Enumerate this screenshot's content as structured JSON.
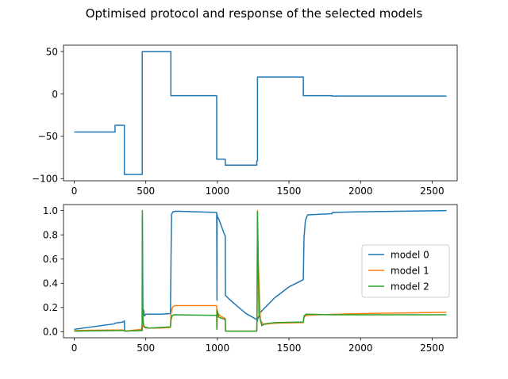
{
  "figure": {
    "title": "Optimised protocol and response of the selected models"
  },
  "colors": {
    "model0": "#1f77b4",
    "model1": "#ff7f0e",
    "model2": "#2ca02c",
    "protocol": "#1f77b4"
  },
  "chart_data": [
    {
      "type": "line",
      "title": "",
      "xlabel": "",
      "ylabel": "",
      "xlim": [
        -75,
        2675
      ],
      "ylim": [
        -102.5,
        57.5
      ],
      "xticks": [
        0,
        500,
        1000,
        1500,
        2000,
        2500
      ],
      "yticks": [
        -100,
        -50,
        0,
        50
      ],
      "ytick_labels": [
        "−100",
        "−50",
        "0",
        "50"
      ],
      "grid": false,
      "series": [
        {
          "color": "#1f77b4",
          "x": [
            0,
            285,
            285,
            350,
            350,
            475,
            475,
            675,
            675,
            995,
            995,
            1055,
            1055,
            1275,
            1275,
            1280,
            1280,
            1600,
            1600,
            1800,
            1800,
            2600
          ],
          "y": [
            -45,
            -45,
            -37,
            -37,
            -95,
            -95,
            50,
            50,
            -2,
            -2,
            -77,
            -77,
            -84,
            -84,
            -79,
            -79,
            20,
            20,
            -2,
            -2,
            -2.5,
            -2.5
          ]
        }
      ]
    },
    {
      "type": "line",
      "title": "",
      "xlabel": "",
      "ylabel": "",
      "xlim": [
        -75,
        2675
      ],
      "ylim": [
        -0.05,
        1.05
      ],
      "xticks": [
        0,
        500,
        1000,
        1500,
        2000,
        2500
      ],
      "yticks": [
        0.0,
        0.2,
        0.4,
        0.6,
        0.8,
        1.0
      ],
      "ytick_labels": [
        "0.0",
        "0.2",
        "0.4",
        "0.6",
        "0.8",
        "1.0"
      ],
      "grid": false,
      "legend_position": "center-right",
      "series": [
        {
          "name": "model 0",
          "color": "#1f77b4",
          "x": [
            0,
            280,
            285,
            340,
            350,
            352,
            470,
            475,
            476,
            480,
            484,
            490,
            500,
            600,
            672,
            676,
            680,
            690,
            710,
            995,
            997,
            998,
            1000,
            1010,
            1050,
            1055,
            1056,
            1100,
            1200,
            1275,
            1278,
            1280,
            1290,
            1300,
            1400,
            1500,
            1600,
            1605,
            1615,
            1630,
            1800,
            1805,
            2000,
            2600
          ],
          "y": [
            0.02,
            0.065,
            0.07,
            0.08,
            0.09,
            0.005,
            0.012,
            0.01,
            0.95,
            0.13,
            0.18,
            0.13,
            0.145,
            0.145,
            0.15,
            0.6,
            0.97,
            0.99,
            0.995,
            0.985,
            0.26,
            0.97,
            0.95,
            0.93,
            0.8,
            0.79,
            0.3,
            0.25,
            0.15,
            0.1,
            0.085,
            0.1,
            0.13,
            0.16,
            0.28,
            0.37,
            0.43,
            0.78,
            0.92,
            0.965,
            0.975,
            0.985,
            0.99,
            1.0
          ]
        },
        {
          "name": "model 1",
          "color": "#ff7f0e",
          "x": [
            0,
            340,
            350,
            352,
            470,
            475,
            476,
            480,
            485,
            500,
            600,
            672,
            676,
            685,
            700,
            995,
            997,
            1000,
            1020,
            1055,
            1057,
            1275,
            1277,
            1280,
            1285,
            1300,
            1320,
            1400,
            1600,
            1605,
            1620,
            1700,
            2000,
            2600
          ],
          "y": [
            0.01,
            0.015,
            0.01,
            0.005,
            0.02,
            0.05,
            0.15,
            0.05,
            0.04,
            0.03,
            0.03,
            0.035,
            0.15,
            0.2,
            0.215,
            0.215,
            0.025,
            0.16,
            0.13,
            0.11,
            0.005,
            0.005,
            0.08,
            1.0,
            0.6,
            0.1,
            0.06,
            0.07,
            0.075,
            0.12,
            0.135,
            0.14,
            0.15,
            0.16
          ]
        },
        {
          "name": "model 2",
          "color": "#2ca02c",
          "x": [
            0,
            340,
            350,
            352,
            470,
            474,
            476,
            477,
            480,
            484,
            490,
            520,
            600,
            672,
            676,
            685,
            700,
            995,
            996,
            998,
            1010,
            1055,
            1057,
            1275,
            1277,
            1280,
            1290,
            1310,
            1330,
            1400,
            1600,
            1605,
            1620,
            1800,
            2600
          ],
          "y": [
            0.005,
            0.01,
            0.01,
            0.005,
            0.01,
            0.02,
            1.0,
            0.29,
            0.12,
            0.06,
            0.04,
            0.03,
            0.035,
            0.04,
            0.1,
            0.135,
            0.14,
            0.135,
            0.02,
            0.18,
            0.12,
            0.1,
            0.005,
            0.005,
            0.2,
            0.99,
            0.15,
            0.05,
            0.065,
            0.075,
            0.08,
            0.13,
            0.145,
            0.14,
            0.14
          ]
        }
      ]
    }
  ]
}
